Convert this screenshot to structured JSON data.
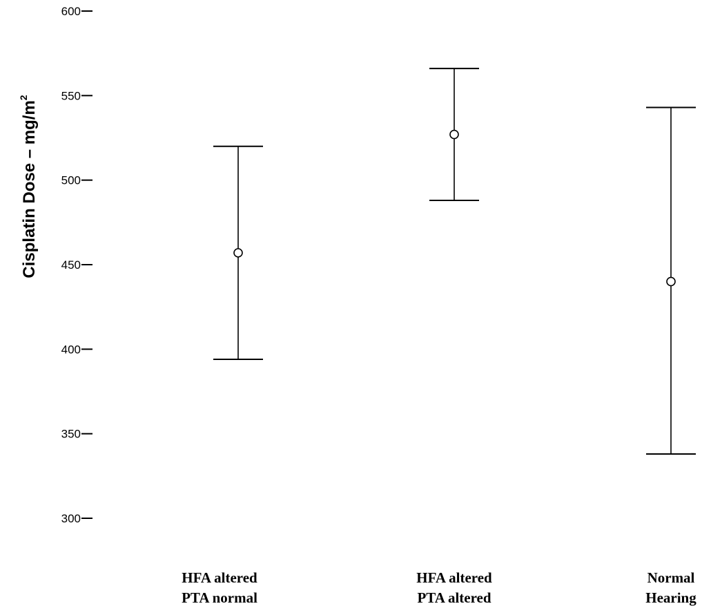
{
  "chart_data": {
    "type": "errorbar",
    "title": "",
    "ylabel": "Cisplatin Dose – mg/m",
    "ylabel_superscript": "2",
    "ylim": [
      300,
      600
    ],
    "yticks": [
      300,
      350,
      400,
      450,
      500,
      550,
      600
    ],
    "ytick_labels": [
      "300",
      "350",
      "400",
      "450",
      "500",
      "550",
      "600"
    ],
    "categories": [
      {
        "lines": [
          "HFA altered",
          "PTA normal"
        ]
      },
      {
        "lines": [
          "HFA altered",
          "PTA altered"
        ]
      },
      {
        "lines": [
          "Normal",
          "Hearing"
        ]
      }
    ],
    "series": [
      {
        "values": [
          457,
          527,
          440
        ],
        "lower": [
          394,
          488,
          338
        ],
        "upper": [
          520,
          566,
          543
        ]
      }
    ],
    "marker": "open-circle",
    "grid": false,
    "colors": {
      "line": "#000000",
      "background": "#ffffff"
    }
  }
}
